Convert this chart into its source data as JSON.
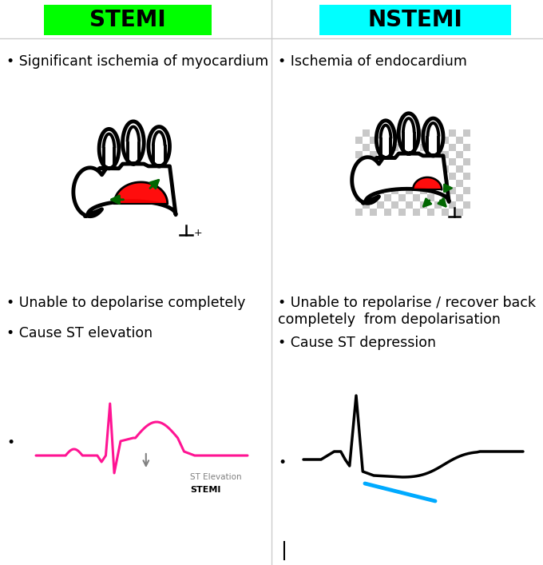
{
  "title_stemi": "STEMI",
  "title_nstemi": "NSTEMI",
  "title_stemi_bg": "#00FF00",
  "title_nstemi_bg": "#00FFFF",
  "title_fontsize": 20,
  "title_fontweight": "bold",
  "bullet_fontsize": 12.5,
  "text_stemi_1": "Significant ischemia of myocardium",
  "text_stemi_2": "Unable to depolarise completely",
  "text_stemi_3": "Cause ST elevation",
  "text_nstemi_1": "Ischemia of endocardium",
  "text_nstemi_2": "Unable to repolarise / recover back\ncompletely  from depolarisation",
  "text_nstemi_3": "Cause ST depression",
  "ecg_stemi_color": "#FF1493",
  "ecg_nstemi_color": "#000000",
  "st_depression_color": "#00AAFF",
  "background_color": "#FFFFFF"
}
